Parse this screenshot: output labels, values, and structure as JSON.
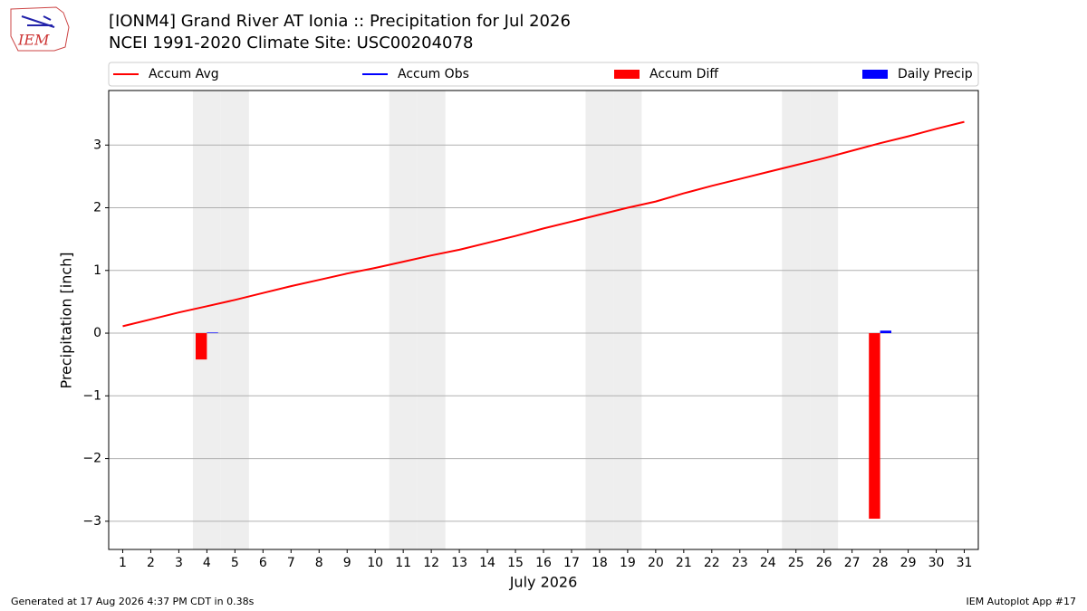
{
  "chart_data": {
    "type": "line",
    "title": "[IONM4] Grand River  AT Ionia :: Precipitation for Jul 2026",
    "subtitle": "NCEI 1991-2020 Climate Site: USC00204078",
    "logo": "IEM",
    "xlabel": "July 2026",
    "ylabel": "Precipitation [inch]",
    "footer_left": "Generated at 17 Aug 2026 4:37 PM CDT in 0.38s",
    "footer_right": "IEM Autoplot App #17",
    "x": [
      1,
      2,
      3,
      4,
      5,
      6,
      7,
      8,
      9,
      10,
      11,
      12,
      13,
      14,
      15,
      16,
      17,
      18,
      19,
      20,
      21,
      22,
      23,
      24,
      25,
      26,
      27,
      28,
      29,
      30,
      31
    ],
    "xlim": [
      0.5,
      31.5
    ],
    "xticks": [
      1,
      2,
      3,
      4,
      5,
      6,
      7,
      8,
      9,
      10,
      11,
      12,
      13,
      14,
      15,
      16,
      17,
      18,
      19,
      20,
      21,
      22,
      23,
      24,
      25,
      26,
      27,
      28,
      29,
      30,
      31
    ],
    "ylim": [
      -3.45,
      3.87
    ],
    "yticks": [
      {
        "value": -3,
        "label": "−3"
      },
      {
        "value": -2,
        "label": "−2"
      },
      {
        "value": -1,
        "label": "−1"
      },
      0,
      1,
      2,
      3
    ],
    "grid": true,
    "weekend_days": [
      4,
      5,
      11,
      12,
      18,
      19,
      25,
      26
    ],
    "series": [
      {
        "name": "Accum Avg",
        "kind": "line",
        "color": "#ff0000",
        "values": [
          0.11,
          0.22,
          0.33,
          0.43,
          0.53,
          0.64,
          0.75,
          0.85,
          0.95,
          1.04,
          1.14,
          1.24,
          1.33,
          1.44,
          1.55,
          1.67,
          1.78,
          1.89,
          2.0,
          2.1,
          2.23,
          2.35,
          2.46,
          2.57,
          2.68,
          2.79,
          2.91,
          3.03,
          3.14,
          3.26,
          3.37
        ]
      },
      {
        "name": "Accum Obs",
        "kind": "line",
        "color": "#0000ff",
        "values": [
          null,
          null,
          null,
          null,
          null,
          null,
          null,
          null,
          null,
          null,
          null,
          null,
          null,
          null,
          null,
          null,
          null,
          null,
          null,
          null,
          null,
          null,
          null,
          null,
          null,
          null,
          null,
          null,
          null,
          null,
          null
        ]
      },
      {
        "name": "Accum Diff",
        "kind": "bar",
        "color": "#ff0000",
        "values": [
          null,
          null,
          null,
          -0.42,
          null,
          null,
          null,
          null,
          null,
          null,
          null,
          null,
          null,
          null,
          null,
          null,
          null,
          null,
          null,
          null,
          null,
          null,
          null,
          null,
          null,
          null,
          null,
          -2.96,
          null,
          null,
          null
        ]
      },
      {
        "name": "Daily Precip",
        "kind": "bar",
        "color": "#0000ff",
        "values": [
          null,
          null,
          null,
          0.01,
          null,
          null,
          null,
          null,
          null,
          null,
          null,
          null,
          null,
          null,
          null,
          null,
          null,
          null,
          null,
          null,
          null,
          null,
          null,
          null,
          null,
          null,
          null,
          0.04,
          null,
          null,
          null
        ]
      }
    ]
  }
}
